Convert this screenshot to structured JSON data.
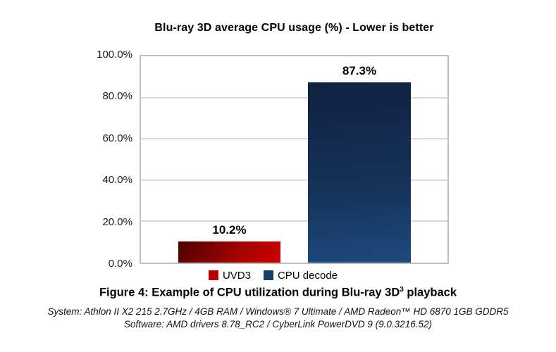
{
  "chart_data": {
    "type": "bar",
    "title": "Blu-ray 3D average CPU usage (%) - Lower is better",
    "categories": [
      "UVD3",
      "CPU decode"
    ],
    "values": [
      10.2,
      87.3
    ],
    "value_labels": [
      "10.2%",
      "87.3%"
    ],
    "xlabel": "",
    "ylabel": "",
    "ylim": [
      0,
      100
    ],
    "ytick_labels": [
      "100.0%",
      "80.0%",
      "60.0%",
      "40.0%",
      "20.0%",
      "0.0%"
    ],
    "grid": true,
    "legend_position": "bottom",
    "series_styles": [
      {
        "name": "UVD3",
        "gradient_angle": "120deg",
        "gradient_from": "#4e0000",
        "gradient_mid": "#a50303",
        "gradient_to": "#cc0000"
      },
      {
        "name": "CPU decode",
        "gradient_angle": "175deg",
        "gradient_from": "#0f2240",
        "gradient_mid": "#16335a",
        "gradient_to": "#1d4a7e"
      }
    ]
  },
  "legend": {
    "items": [
      {
        "label": "UVD3",
        "color": "#b70000"
      },
      {
        "label": "CPU decode",
        "color": "#1b3c63"
      }
    ]
  },
  "caption": {
    "prefix": "Figure 4: Example of CPU utilization during Blu-ray 3D",
    "footnote_marker": "3",
    "suffix": " playback"
  },
  "footer": {
    "system_line": "System: Athlon II X2 215 2.7GHz / 4GB RAM / Windows® 7 Ultimate / AMD Radeon™ HD 6870 1GB GDDR5",
    "software_line": "Software: AMD drivers 8.78_RC2 / CyberLink PowerDVD 9 (9.0.3216.52)"
  },
  "colors": {
    "plot_border": "#bfbfbf",
    "gridline": "#d9d9d9",
    "text": "#000000"
  }
}
